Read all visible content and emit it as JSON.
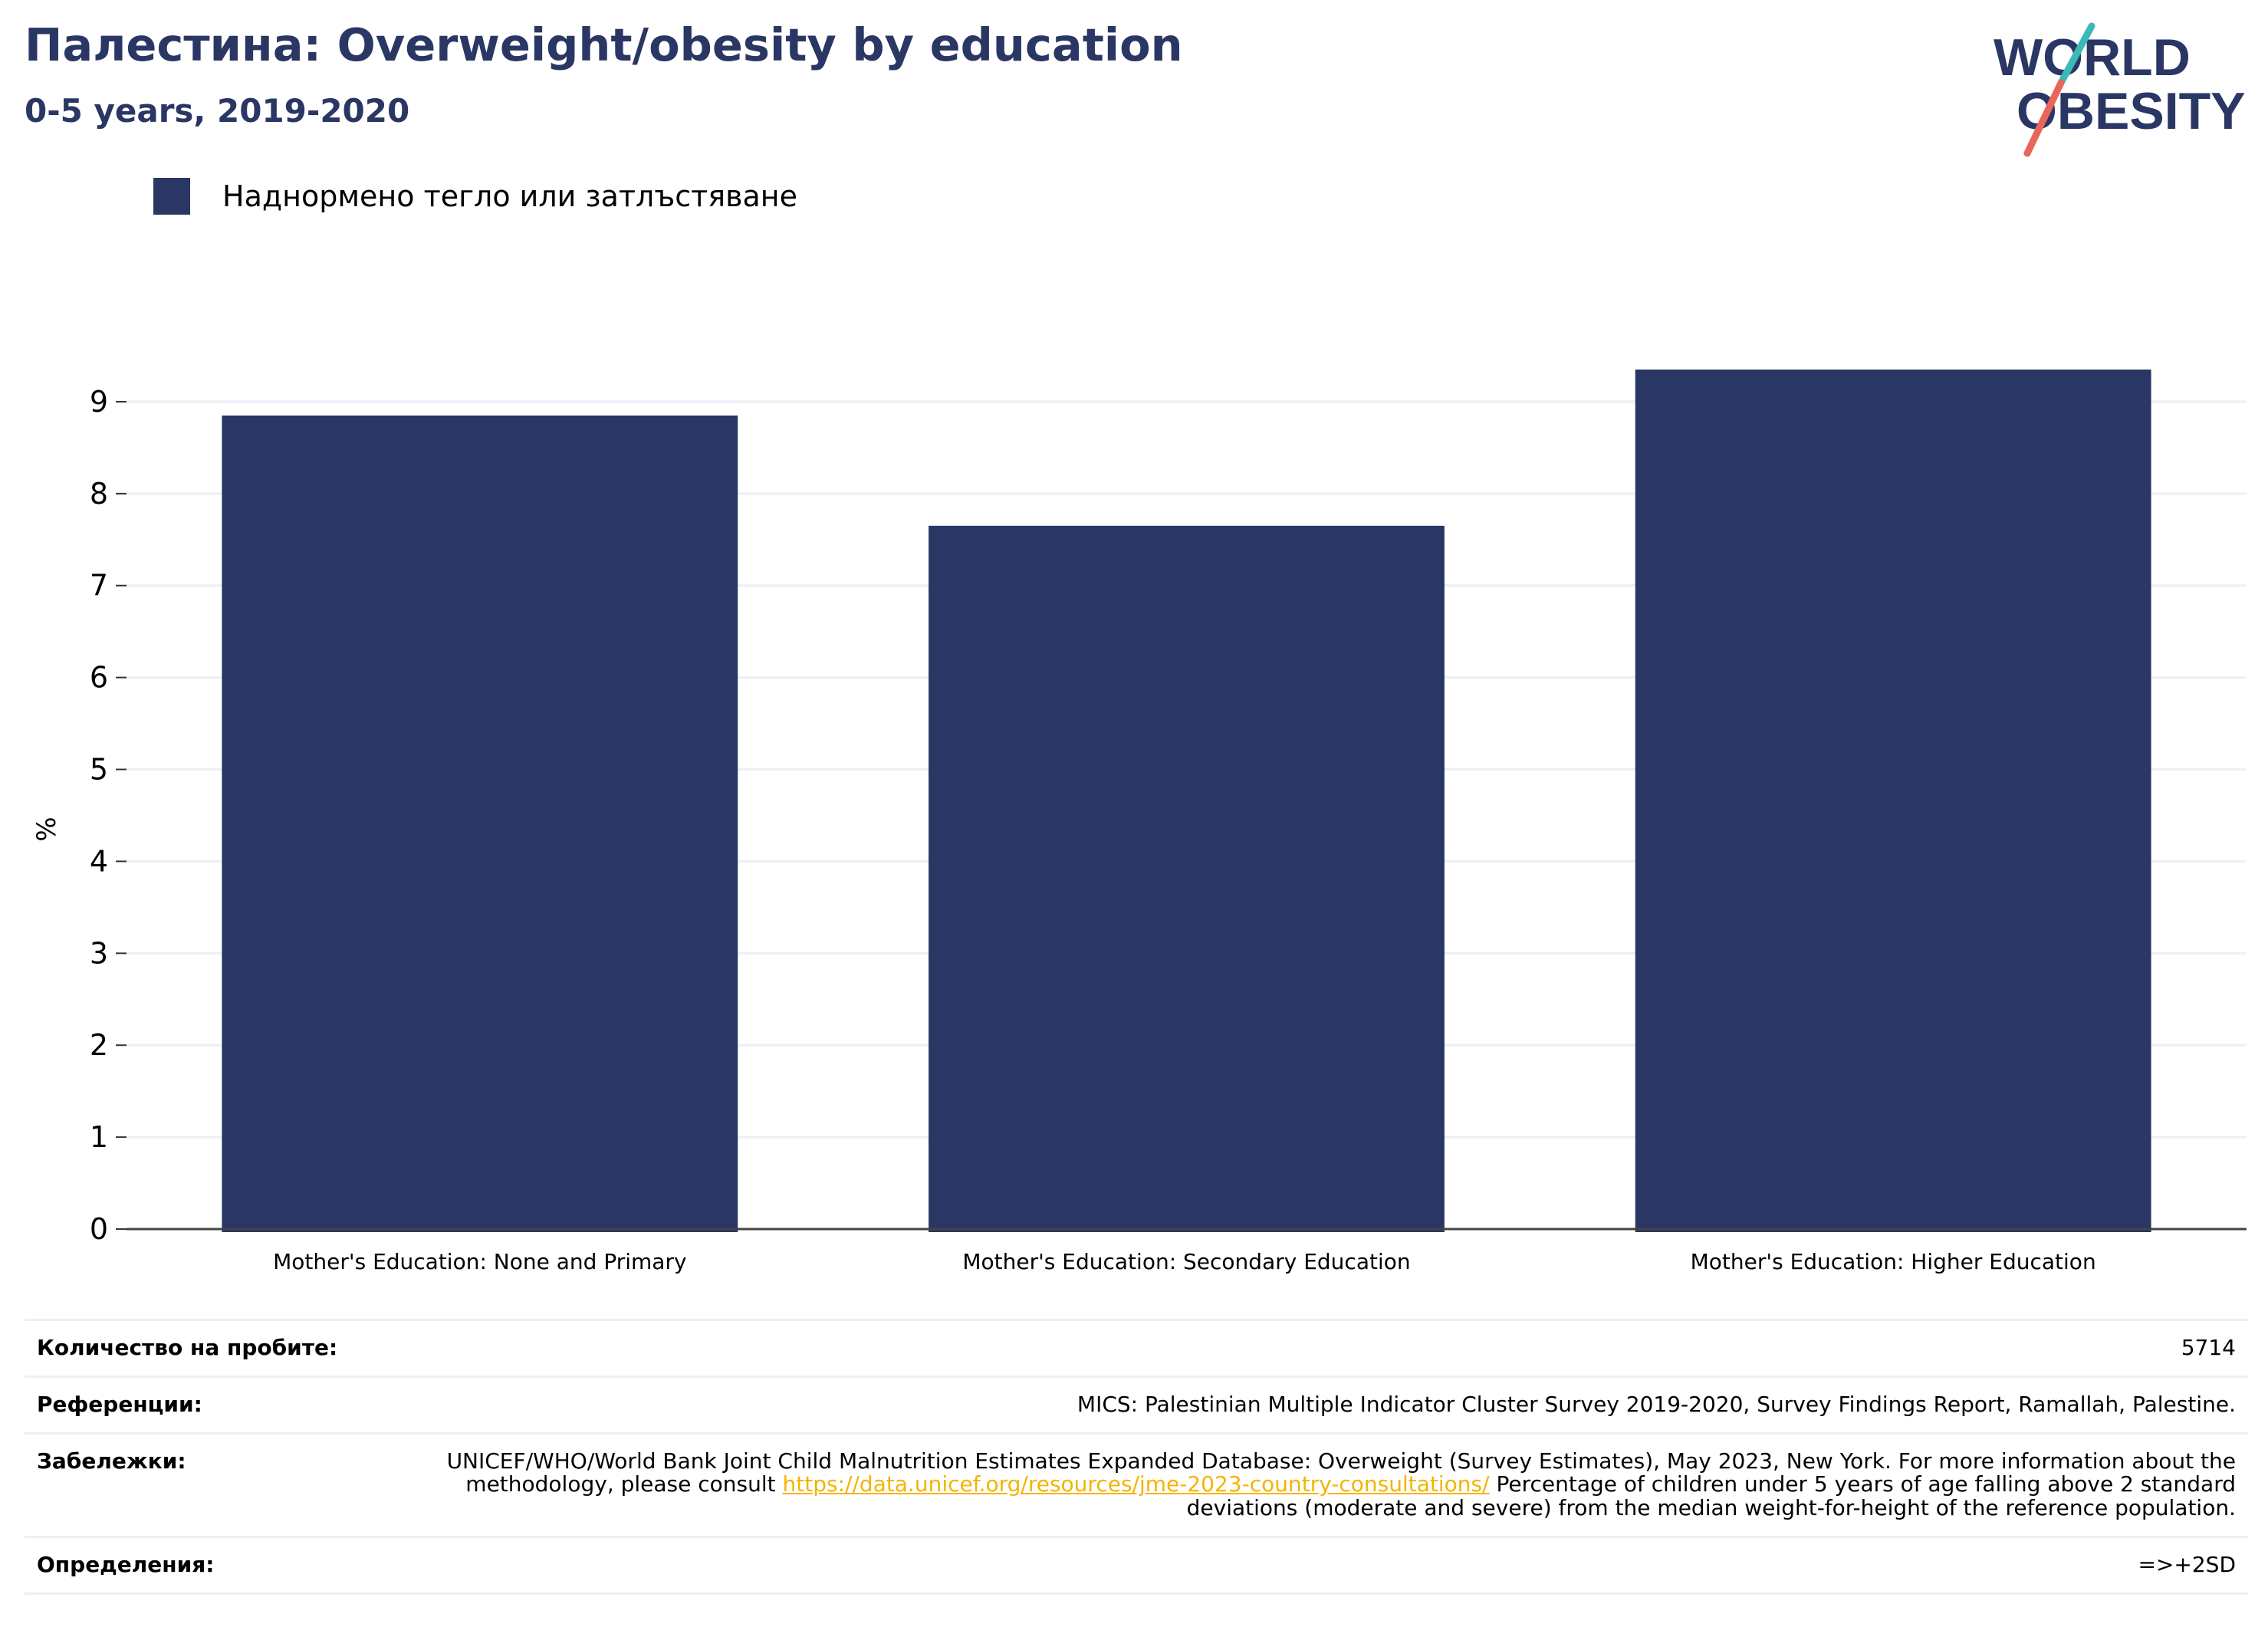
{
  "header": {
    "title": "Палестина: Overweight/obesity by education",
    "subtitle": "0-5 years, 2019-2020"
  },
  "logo": {
    "line1": "WORLD",
    "line2": "OBESITY"
  },
  "colors": {
    "bar": "#2a3663",
    "title": "#2a3663",
    "grid": "#eceff4",
    "link": "#f4b400",
    "logo_teal": "#3bb8b8",
    "logo_red": "#e8675a"
  },
  "chart_data": {
    "type": "bar",
    "categories": [
      "Mother's Education: None and Primary",
      "Mother's Education: Secondary Education",
      "Mother's Education: Higher Education"
    ],
    "series": [
      {
        "name": "Наднормено тегло или затлъстяване",
        "values": [
          8.85,
          7.65,
          9.35
        ]
      }
    ],
    "ylabel": "%",
    "ylim": [
      0,
      9.7
    ],
    "yticks": [
      0,
      1,
      2,
      3,
      4,
      5,
      6,
      7,
      8,
      9
    ],
    "grid": true,
    "legend_position": "top-left"
  },
  "info": {
    "sample_label": "Количество на пробите:",
    "sample_value": "5714",
    "references_label": "Референции:",
    "references_value": "MICS: Palestinian Multiple Indicator Cluster Survey 2019-2020, Survey Findings Report, Ramallah, Palestine.",
    "notes_label": "Забележки:",
    "notes_text1": "UNICEF/WHO/World Bank Joint Child Malnutrition Estimates Expanded Database: Overweight (Survey Estimates), May 2023, New York. For more information about the methodology, please consult ",
    "notes_link": "https://data.unicef.org/resources/jme-2023-country-consultations/",
    "notes_text2": " Percentage of children under 5 years of age falling above 2 standard deviations (moderate and severe) from the median weight-for-height of the reference population.",
    "definitions_label": "Определения:",
    "definitions_value": "=>+2SD"
  }
}
